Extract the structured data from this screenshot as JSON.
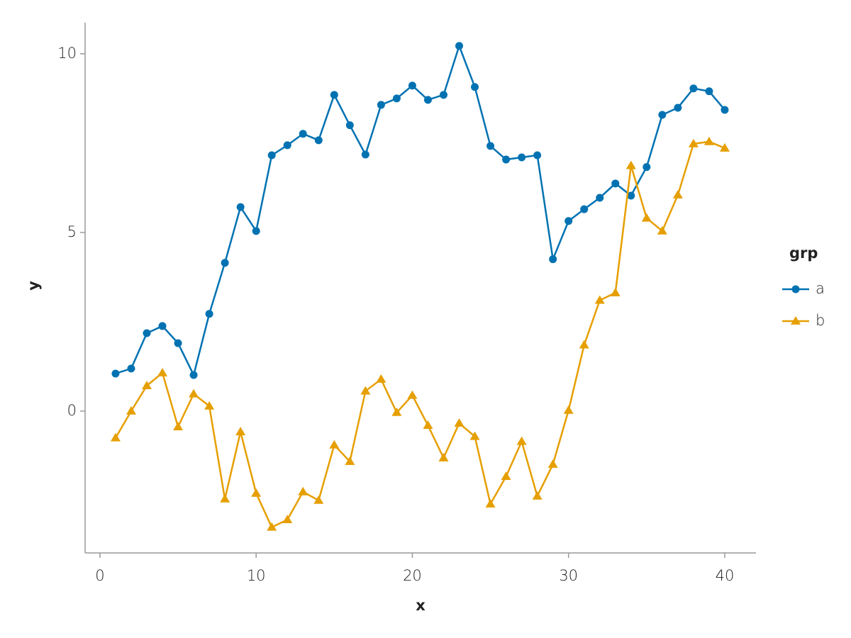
{
  "chart_data": {
    "type": "line",
    "xlabel": "x",
    "ylabel": "y",
    "legend_title": "grp",
    "legend": "right",
    "x": [
      1,
      2,
      3,
      4,
      5,
      6,
      7,
      8,
      9,
      10,
      11,
      12,
      13,
      14,
      15,
      16,
      17,
      18,
      19,
      20,
      21,
      22,
      23,
      24,
      25,
      26,
      27,
      28,
      29,
      30,
      31,
      32,
      33,
      34,
      35,
      36,
      37,
      38,
      39,
      40
    ],
    "series": [
      {
        "name": "a",
        "color": "#0072b2",
        "marker": "circle",
        "values": [
          1.05,
          1.19,
          2.18,
          2.38,
          1.9,
          1.01,
          2.72,
          4.15,
          5.71,
          5.04,
          7.16,
          7.44,
          7.76,
          7.58,
          8.85,
          8.0,
          7.18,
          8.57,
          8.75,
          9.11,
          8.71,
          8.85,
          10.22,
          9.07,
          7.42,
          7.04,
          7.1,
          7.16,
          4.25,
          5.32,
          5.65,
          5.97,
          6.37,
          6.03,
          6.83,
          8.29,
          8.49,
          9.03,
          8.95,
          8.43
        ]
      },
      {
        "name": "b",
        "color": "#e69f00",
        "marker": "triangle",
        "values": [
          -0.75,
          0,
          0.71,
          1.07,
          -0.44,
          0.48,
          0.14,
          -2.46,
          -0.58,
          -2.3,
          -3.25,
          -3.04,
          -2.26,
          -2.5,
          -0.95,
          -1.41,
          0.56,
          0.89,
          -0.04,
          0.44,
          -0.4,
          -1.31,
          -0.34,
          -0.71,
          -2.6,
          -1.83,
          -0.85,
          -2.38,
          -1.49,
          0.02,
          1.85,
          3.1,
          3.31,
          6.87,
          5.4,
          5.04,
          6.05,
          7.48,
          7.54,
          7.36
        ]
      }
    ],
    "xlim": [
      -0.95,
      42
    ],
    "ylim": [
      -3.97,
      10.87
    ],
    "xticks": [
      0,
      10,
      20,
      30,
      40
    ],
    "yticks": [
      0,
      5,
      10
    ],
    "grid": false
  }
}
